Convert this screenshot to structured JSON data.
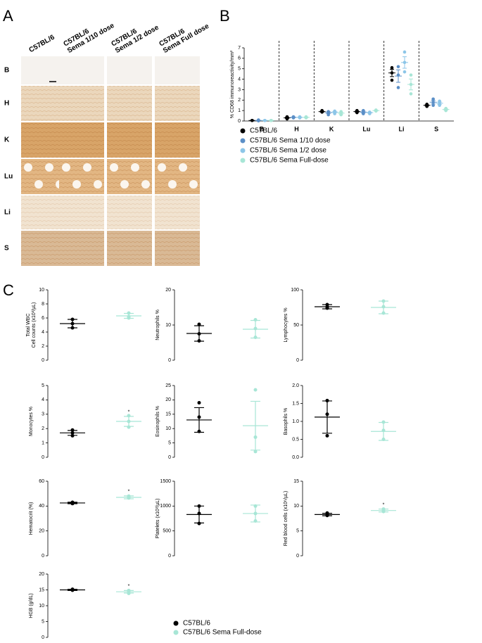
{
  "panel_labels": [
    "A",
    "B",
    "C"
  ],
  "image_grid": {
    "columns": [
      [
        "C57BL/6"
      ],
      [
        "C57BL/6",
        "Sema 1/10 dose"
      ],
      [
        "C57BL/6",
        "Sema 1/2 dose"
      ],
      [
        "C57BL/6",
        "Sema Full dose"
      ]
    ],
    "rows": [
      "B",
      "H",
      "K",
      "Lu",
      "Li",
      "S"
    ]
  },
  "chart_data": [
    {
      "type": "dotplot",
      "ylabel": "% CD68 immunoreactivity/mm²",
      "categories": [
        "B",
        "H",
        "K",
        "Lu",
        "Li",
        "S"
      ],
      "ylim": [
        0,
        7
      ],
      "yticks": [
        0,
        1,
        2,
        3,
        4,
        5,
        6,
        7
      ],
      "series": [
        {
          "name": "C57BL/6",
          "color": "#000000",
          "values": [
            0.05,
            0.3,
            0.9,
            0.9,
            4.6,
            1.5
          ],
          "errors": [
            0.01,
            0.06,
            0.05,
            0.06,
            0.35,
            0.06
          ],
          "points": [
            [
              0.05,
              0.05,
              0.05
            ],
            [
              0.4,
              0.3,
              0.2
            ],
            [
              1.0,
              0.9,
              0.85
            ],
            [
              1.0,
              0.9,
              0.8
            ],
            [
              5.1,
              4.6,
              3.9
            ],
            [
              1.6,
              1.5,
              1.4
            ]
          ]
        },
        {
          "name": "C57BL/6 Sema 1/10 dose",
          "color": "#5b8fc7",
          "values": [
            0.05,
            0.35,
            0.8,
            0.85,
            4.3,
            1.8
          ],
          "errors": [
            0.02,
            0.03,
            0.09,
            0.09,
            0.6,
            0.17
          ],
          "points": [
            [
              0.1,
              0.05,
              0.02
            ],
            [
              0.4,
              0.35,
              0.3
            ],
            [
              0.9,
              0.8,
              0.6
            ],
            [
              1.0,
              0.85,
              0.7
            ],
            [
              5.2,
              4.4,
              3.2
            ],
            [
              2.1,
              1.8,
              1.5
            ]
          ]
        },
        {
          "name": "C57BL/6 Sema 1/2 dose",
          "color": "#8dc6e8",
          "values": [
            0.05,
            0.35,
            0.85,
            0.8,
            5.6,
            1.7
          ],
          "errors": [
            0.01,
            0.03,
            0.07,
            0.04,
            0.55,
            0.12
          ],
          "points": [
            [
              0.05,
              0.05,
              0.05
            ],
            [
              0.4,
              0.35,
              0.3
            ],
            [
              0.95,
              0.85,
              0.7
            ],
            [
              0.85,
              0.8,
              0.7
            ],
            [
              6.6,
              5.6,
              4.7
            ],
            [
              1.9,
              1.7,
              1.5
            ]
          ]
        },
        {
          "name": "C57BL/6 Sema Full-dose",
          "color": "#a8e6d6",
          "values": [
            0.05,
            0.35,
            0.75,
            1.0,
            3.5,
            1.1
          ],
          "errors": [
            0.01,
            0.03,
            0.09,
            0.03,
            0.52,
            0.06
          ],
          "points": [
            [
              0.05,
              0.05,
              0.05
            ],
            [
              0.4,
              0.35,
              0.3
            ],
            [
              0.9,
              0.75,
              0.6
            ],
            [
              1.05,
              1.0,
              0.95
            ],
            [
              4.4,
              3.5,
              2.6
            ],
            [
              1.2,
              1.1,
              1.0
            ]
          ]
        }
      ]
    },
    {
      "type": "mean-sd-grid",
      "series": [
        {
          "name": "C57BL/6",
          "color": "#000000"
        },
        {
          "name": "C57BL/6 Sema Full-dose",
          "color": "#a8e6d6"
        }
      ],
      "plots": [
        {
          "ylabel": [
            "Total WBC",
            "Cell counts (x10³/µL)"
          ],
          "ylim": [
            0,
            10
          ],
          "yticks": [
            0,
            2,
            4,
            6,
            8,
            10
          ],
          "groups": [
            {
              "values": [
                5.8,
                5.2,
                4.6
              ],
              "mean": 5.2,
              "sd": 0.6
            },
            {
              "values": [
                6.7,
                6.2,
                6.0
              ],
              "mean": 6.3,
              "sd": 0.35
            }
          ]
        },
        {
          "ylabel": [
            "Neutrophils %"
          ],
          "ylim": [
            0,
            20
          ],
          "yticks": [
            0,
            10,
            20
          ],
          "groups": [
            {
              "values": [
                10.2,
                7.5,
                5.5
              ],
              "mean": 7.6,
              "sd": 2.2
            },
            {
              "values": [
                11.5,
                9,
                6.5
              ],
              "mean": 8.8,
              "sd": 2.5
            }
          ]
        },
        {
          "ylabel": [
            "Lymphocytes %"
          ],
          "ylim": [
            0,
            100
          ],
          "yticks": [
            0,
            50,
            100
          ],
          "groups": [
            {
              "values": [
                79,
                76,
                74
              ],
              "mean": 76,
              "sd": 3
            },
            {
              "values": [
                84,
                76,
                67
              ],
              "mean": 75,
              "sd": 9
            }
          ]
        },
        {
          "ylabel": [
            "Monocytes %"
          ],
          "ylim": [
            0,
            5
          ],
          "yticks": [
            0,
            1,
            2,
            3,
            4,
            5
          ],
          "groups": [
            {
              "values": [
                1.9,
                1.7,
                1.5
              ],
              "mean": 1.7,
              "sd": 0.17
            },
            {
              "values": [
                2.9,
                2.5,
                2.1
              ],
              "mean": 2.5,
              "sd": 0.35,
              "annotation": "*"
            }
          ]
        },
        {
          "ylabel": [
            "Eosinophils %"
          ],
          "ylim": [
            0,
            25
          ],
          "yticks": [
            0,
            5,
            10,
            15,
            20,
            25
          ],
          "groups": [
            {
              "values": [
                19,
                14,
                9
              ],
              "mean": 13,
              "sd": 4.3
            },
            {
              "values": [
                23.5,
                7,
                2
              ],
              "mean": 11,
              "sd": 8.5
            }
          ]
        },
        {
          "ylabel": [
            "Basophils %"
          ],
          "ylim": [
            0,
            2
          ],
          "yticks": [
            {
              "value": 0,
              "label": "0.0"
            },
            {
              "value": 0.5,
              "label": "0.5"
            },
            {
              "value": 1,
              "label": "1.0"
            },
            {
              "value": 1.5,
              "label": "1.5"
            },
            {
              "value": 2,
              "label": "2.0"
            }
          ],
          "groups": [
            {
              "values": [
                1.58,
                1.2,
                0.6
              ],
              "mean": 1.12,
              "sd": 0.45
            },
            {
              "values": [
                0.98,
                0.75,
                0.5
              ],
              "mean": 0.72,
              "sd": 0.25
            }
          ]
        },
        {
          "ylabel": [
            "Hematocrit (%)"
          ],
          "ylim": [
            0,
            60
          ],
          "yticks": [
            0,
            20,
            40,
            60
          ],
          "groups": [
            {
              "values": [
                43,
                42.5,
                42
              ],
              "mean": 42.5,
              "sd": 0.6
            },
            {
              "values": [
                48,
                47,
                46.5
              ],
              "mean": 47,
              "sd": 1.2,
              "annotation": "*"
            }
          ]
        },
        {
          "ylabel": [
            "Platelets (x10³/µL)"
          ],
          "ylim": [
            0,
            1500
          ],
          "yticks": [
            0,
            500,
            1000,
            1500
          ],
          "groups": [
            {
              "values": [
                1000,
                850,
                650
              ],
              "mean": 830,
              "sd": 170
            },
            {
              "values": [
                1000,
                850,
                700
              ],
              "mean": 850,
              "sd": 170
            }
          ]
        },
        {
          "ylabel": [
            "Red blood cells (x10⁶/µL)"
          ],
          "ylim": [
            0,
            15
          ],
          "yticks": [
            0,
            5,
            10,
            15
          ],
          "groups": [
            {
              "values": [
                8.6,
                8.3,
                8.1
              ],
              "mean": 8.3,
              "sd": 0.25
            },
            {
              "values": [
                9.4,
                9.1,
                8.9
              ],
              "mean": 9.1,
              "sd": 0.3,
              "annotation": "*"
            }
          ]
        },
        {
          "ylabel": [
            "HGB (g/dL)"
          ],
          "ylim": [
            0,
            20
          ],
          "yticks": [
            0,
            5,
            10,
            15,
            20
          ],
          "groups": [
            {
              "values": [
                15.2,
                15,
                14.9
              ],
              "mean": 15,
              "sd": 0.2
            },
            {
              "values": [
                14.8,
                14.5,
                13.9
              ],
              "mean": 14.4,
              "sd": 0.4,
              "annotation": "*"
            }
          ]
        }
      ]
    }
  ]
}
